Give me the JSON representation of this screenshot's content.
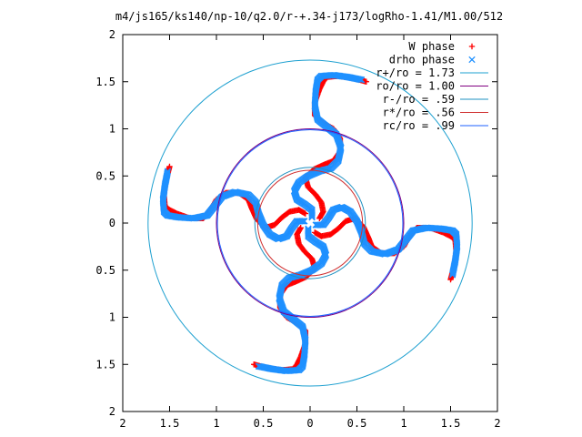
{
  "chart_data": {
    "type": "scatter",
    "title": "m4/js165/ks140/np-10/q2.0/r-+.34-j173/logRho-1.41/M1.00/512",
    "xlabel": "",
    "ylabel": "",
    "xlim": [
      -2,
      2
    ],
    "ylim": [
      -2,
      2
    ],
    "x_ticks": [
      -2,
      -1.5,
      -1,
      -0.5,
      0,
      0.5,
      1,
      1.5,
      2
    ],
    "x_tick_labels": [
      "2",
      "1.5",
      "1",
      "0.5",
      "0",
      "0.5",
      "1",
      "1.5",
      "2"
    ],
    "y_ticks": [
      2,
      1.5,
      1,
      0.5,
      0,
      -0.5,
      -1,
      -1.5,
      -2
    ],
    "y_tick_labels": [
      "2",
      "1.5",
      "1",
      "0.5",
      "0",
      "0.5",
      "1",
      "1.5",
      "2"
    ],
    "grid": false,
    "legend_position": "top-right",
    "series": [
      {
        "name": "W phase",
        "marker": "plus",
        "color": "#ff0000",
        "arms": 4,
        "arm_phase_deg": [
          90,
          0,
          270,
          180
        ],
        "points": [
          [
            0.1,
            0.05
          ],
          [
            0.14,
            0.12
          ],
          [
            0.12,
            0.22
          ],
          [
            0.06,
            0.3
          ],
          [
            -0.02,
            0.38
          ],
          [
            -0.05,
            0.48
          ],
          [
            0.04,
            0.57
          ],
          [
            0.15,
            0.62
          ],
          [
            0.25,
            0.66
          ],
          [
            0.32,
            0.76
          ],
          [
            0.32,
            0.9
          ],
          [
            0.25,
            1.0
          ],
          [
            0.14,
            1.06
          ],
          [
            0.05,
            1.14
          ],
          [
            0.05,
            1.28
          ],
          [
            0.1,
            1.42
          ],
          [
            0.14,
            1.5
          ],
          [
            0.18,
            1.55
          ],
          [
            0.3,
            1.56
          ],
          [
            0.45,
            1.54
          ],
          [
            0.6,
            1.5
          ]
        ]
      },
      {
        "name": "drho phase",
        "marker": "cross",
        "color": "#1e90ff",
        "arms": 4,
        "arm_phase_deg": [
          90,
          0,
          270,
          180
        ],
        "points": [
          [
            0.02,
            0.06
          ],
          [
            0.02,
            0.14
          ],
          [
            -0.06,
            0.2
          ],
          [
            -0.14,
            0.25
          ],
          [
            -0.17,
            0.34
          ],
          [
            -0.12,
            0.43
          ],
          [
            -0.02,
            0.5
          ],
          [
            0.1,
            0.55
          ],
          [
            0.22,
            0.58
          ],
          [
            0.3,
            0.66
          ],
          [
            0.33,
            0.8
          ],
          [
            0.28,
            0.94
          ],
          [
            0.18,
            1.02
          ],
          [
            0.08,
            1.1
          ],
          [
            0.05,
            1.24
          ],
          [
            0.06,
            1.4
          ],
          [
            0.08,
            1.52
          ],
          [
            0.12,
            1.56
          ],
          [
            0.25,
            1.57
          ],
          [
            0.4,
            1.55
          ],
          [
            0.55,
            1.52
          ]
        ]
      }
    ],
    "circles": [
      {
        "name": "r+/ro = 1.73",
        "radius": 1.73,
        "color": "#1ea0d0"
      },
      {
        "name": "ro/ro = 1.00",
        "radius": 1.0,
        "color": "#800080"
      },
      {
        "name": "r-/ro = .59",
        "radius": 0.59,
        "color": "#1e90c0"
      },
      {
        "name": "r*/ro = .56",
        "radius": 0.56,
        "color": "#d03030"
      },
      {
        "name": "rc/ro = .99",
        "radius": 0.99,
        "color": "#1e60ff"
      }
    ]
  }
}
